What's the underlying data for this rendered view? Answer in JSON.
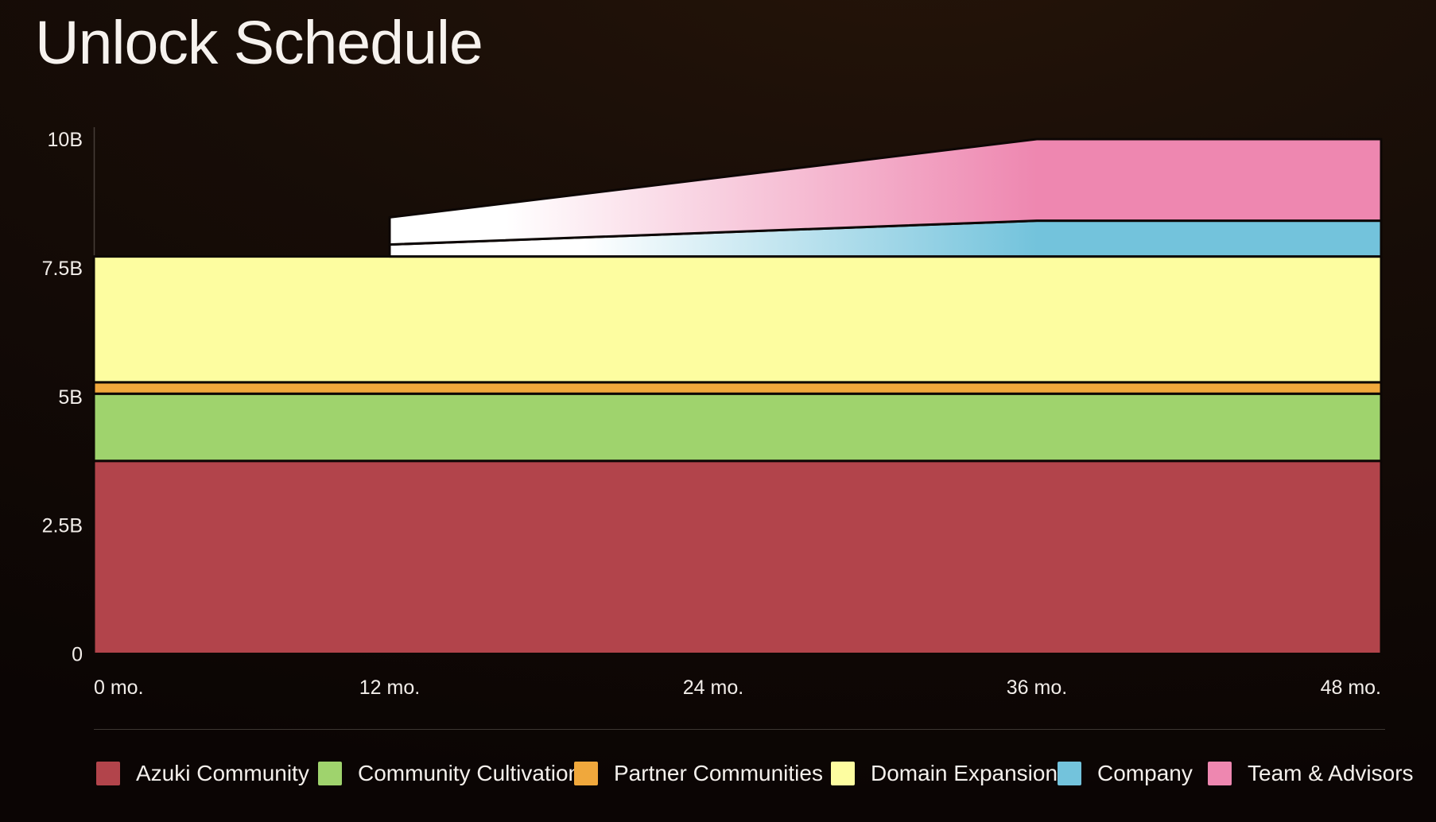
{
  "title": "Unlock Schedule",
  "chart_data": {
    "type": "area",
    "stacked": true,
    "title": "Unlock Schedule",
    "x_unit": "months",
    "xlim_months": [
      0,
      48
    ],
    "ylim": [
      0,
      10
    ],
    "total_supply_label": "10B",
    "grid": "off",
    "legend_position": "bottom",
    "x_ticks": [
      {
        "label": "0 mo.",
        "month": 0
      },
      {
        "label": "12 mo.",
        "month": 12
      },
      {
        "label": "24 mo.",
        "month": 24
      },
      {
        "label": "36 mo.",
        "month": 36
      },
      {
        "label": "48 mo.",
        "month": 48
      }
    ],
    "y_ticks": [
      {
        "label": "0",
        "value": 0
      },
      {
        "label": "2.5B",
        "value": 2.5
      },
      {
        "label": "5B",
        "value": 5
      },
      {
        "label": "7.5B",
        "value": 7.5
      },
      {
        "label": "10B",
        "value": 10
      }
    ],
    "series": [
      {
        "name": "Azuki Community",
        "color": "#b2444b",
        "allocation_b": 3.75,
        "points": [
          [
            0,
            3.75
          ],
          [
            48,
            3.75
          ]
        ]
      },
      {
        "name": "Community Cultivation",
        "color": "#9fd36d",
        "allocation_b": 1.304,
        "points": [
          [
            0,
            1.304
          ],
          [
            48,
            1.304
          ]
        ]
      },
      {
        "name": "Partner Communities",
        "color": "#f0a83c",
        "allocation_b": 0.222,
        "points": [
          [
            0,
            0.222
          ],
          [
            48,
            0.222
          ]
        ]
      },
      {
        "name": "Domain Expansion",
        "color": "#fdfda0",
        "allocation_b": 2.444,
        "points": [
          [
            0,
            2.444
          ],
          [
            48,
            2.444
          ]
        ]
      },
      {
        "name": "Company",
        "color": "#73c3dc",
        "allocation_b": 0.696,
        "cliff_month": 12,
        "fully_vested_month": 36,
        "gradient_from": "#ffffff",
        "gradient_white_hold": 0.3,
        "points": [
          [
            0,
            0
          ],
          [
            12,
            0
          ],
          [
            12,
            0.232
          ],
          [
            36,
            0.696
          ],
          [
            48,
            0.696
          ]
        ]
      },
      {
        "name": "Team & Advisors",
        "color": "#ee87b0",
        "allocation_b": 1.584,
        "cliff_month": 12,
        "fully_vested_month": 36,
        "gradient_from": "#ffffff",
        "gradient_white_hold": 0.18,
        "points": [
          [
            0,
            0
          ],
          [
            12,
            0
          ],
          [
            12,
            0.528
          ],
          [
            36,
            1.584
          ],
          [
            48,
            1.584
          ]
        ]
      }
    ],
    "legend": [
      "Azuki Community",
      "Community Cultivation",
      "Partner Communities",
      "Domain Expansion",
      "Company",
      "Team & Advisors"
    ]
  }
}
